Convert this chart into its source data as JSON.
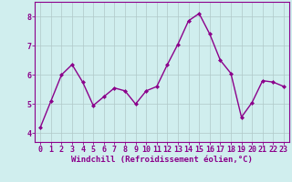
{
  "x": [
    0,
    1,
    2,
    3,
    4,
    5,
    6,
    7,
    8,
    9,
    10,
    11,
    12,
    13,
    14,
    15,
    16,
    17,
    18,
    19,
    20,
    21,
    22,
    23
  ],
  "y": [
    4.2,
    5.1,
    6.0,
    6.35,
    5.75,
    4.95,
    5.25,
    5.55,
    5.45,
    5.0,
    5.45,
    5.6,
    6.35,
    7.05,
    7.85,
    8.1,
    7.4,
    6.5,
    6.05,
    4.55,
    5.05,
    5.8,
    5.75,
    5.6
  ],
  "line_color": "#8B008B",
  "marker": "D",
  "marker_size": 2,
  "bg_color": "#d0eeee",
  "grid_color": "#b0c8c8",
  "xlabel": "Windchill (Refroidissement éolien,°C)",
  "xlabel_color": "#8B008B",
  "xlabel_fontsize": 6.5,
  "ylabel_ticks": [
    4,
    5,
    6,
    7,
    8
  ],
  "xlim": [
    -0.5,
    23.5
  ],
  "ylim": [
    3.7,
    8.5
  ],
  "tick_color": "#8B008B",
  "tick_fontsize": 6,
  "spine_color": "#8B008B",
  "linewidth": 1.0
}
